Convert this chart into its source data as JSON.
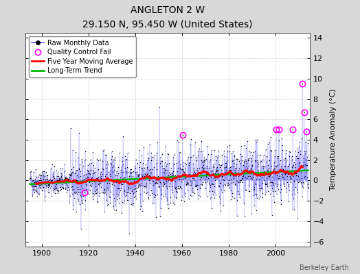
{
  "title": "ANGLETON 2 W",
  "subtitle": "29.150 N, 95.450 W (United States)",
  "ylabel": "Temperature Anomaly (°C)",
  "attribution": "Berkeley Earth",
  "start_year": 1895,
  "end_year": 2013,
  "ylim": [
    -6.5,
    14.5
  ],
  "yticks": [
    -6,
    -4,
    -2,
    0,
    2,
    4,
    6,
    8,
    10,
    12,
    14
  ],
  "xticks": [
    1900,
    1920,
    1940,
    1960,
    1980,
    2000
  ],
  "background_color": "#d8d8d8",
  "plot_bg_color": "#ffffff",
  "raw_line_color": "#5555ff",
  "raw_dot_color": "#000000",
  "moving_avg_color": "#ff0000",
  "trend_color": "#00bb00",
  "qc_fail_color": "#ff00ff",
  "seed": 42
}
